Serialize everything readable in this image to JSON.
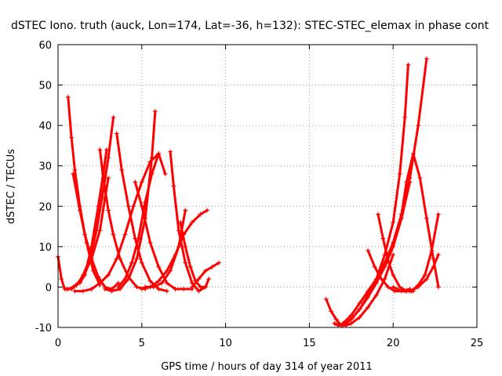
{
  "chart_data": {
    "type": "scatter",
    "title": "dSTEC Iono. truth (auck, Lon=174, Lat=-36, h=132): STEC-STEC_elemax in phase cont",
    "xlabel": "GPS time / hours of day 314 of year 2011",
    "ylabel": "dSTEC  / TECUs",
    "xlim": [
      0,
      25
    ],
    "ylim": [
      -10,
      60
    ],
    "xticks": [
      0,
      5,
      10,
      15,
      20,
      25
    ],
    "yticks": [
      -10,
      0,
      10,
      20,
      30,
      40,
      50,
      60
    ],
    "grid": true,
    "color": "#ff0000",
    "marker": "plus",
    "series": [
      {
        "x": [
          0.0,
          0.2,
          0.4,
          0.6,
          0.9,
          1.2,
          1.5,
          1.9,
          2.3,
          2.7,
          3.0,
          3.3
        ],
        "y": [
          7.5,
          2,
          -0.5,
          -0.5,
          0,
          1,
          3,
          7,
          14,
          24,
          32,
          42
        ]
      },
      {
        "x": [
          0.6,
          0.8,
          1.0,
          1.3,
          1.6,
          2.0,
          2.4,
          2.8,
          3.2,
          3.6
        ],
        "y": [
          47,
          37,
          29,
          20,
          13,
          7,
          2.5,
          0,
          -0.5,
          1
        ]
      },
      {
        "x": [
          0.5,
          0.8,
          1.1,
          1.5,
          2.0,
          2.5,
          2.8,
          3.0
        ],
        "y": [
          -0.5,
          -0.5,
          0.5,
          2.5,
          7,
          14,
          22,
          27
        ]
      },
      {
        "x": [
          0.9,
          1.3,
          1.7,
          2.1,
          2.5
        ],
        "y": [
          28,
          19,
          11,
          4,
          0.5
        ]
      },
      {
        "x": [
          1.3,
          1.6,
          2.0,
          2.4,
          2.7,
          2.9
        ],
        "y": [
          1,
          3,
          10,
          20,
          28,
          34
        ]
      },
      {
        "x": [
          2.5,
          2.7,
          3.0,
          3.3,
          3.7,
          4.2,
          4.7,
          5.2
        ],
        "y": [
          34,
          27,
          19,
          13,
          7,
          2.5,
          0,
          -0.5
        ]
      },
      {
        "x": [
          1.0,
          1.5,
          2.0,
          2.5,
          3.0,
          3.5,
          4.0,
          4.5,
          5.0,
          5.5,
          6.0,
          6.4
        ],
        "y": [
          -1,
          -1,
          -0.5,
          1,
          3,
          7,
          13,
          20,
          26,
          31,
          33,
          28
        ]
      },
      {
        "x": [
          3.5,
          3.8,
          4.2,
          4.6,
          5.0,
          5.5,
          6.0,
          6.5
        ],
        "y": [
          38,
          29,
          20,
          12,
          6,
          1.5,
          -0.5,
          -1
        ]
      },
      {
        "x": [
          2.8,
          3.2,
          3.7,
          4.2,
          4.7,
          5.2,
          5.6,
          5.8
        ],
        "y": [
          -0.5,
          -1,
          -0.5,
          2,
          7,
          17,
          32,
          43.5
        ]
      },
      {
        "x": [
          3.6,
          4.0,
          4.4,
          4.8,
          5.2,
          5.6,
          6.0
        ],
        "y": [
          0,
          2,
          6,
          12,
          21,
          28,
          33
        ]
      },
      {
        "x": [
          4.6,
          5.0,
          5.5,
          6.0,
          6.5,
          7.0,
          7.5,
          8.0
        ],
        "y": [
          26,
          20,
          11,
          5,
          1,
          -0.5,
          -0.5,
          -0.5
        ]
      },
      {
        "x": [
          5.2,
          5.7,
          6.2,
          6.7,
          7.2,
          7.6
        ],
        "y": [
          0,
          0,
          1,
          4,
          10,
          19
        ]
      },
      {
        "x": [
          5.0,
          5.5,
          6.0,
          6.5,
          7.0,
          7.5,
          8.0,
          8.5,
          8.9
        ],
        "y": [
          -0.5,
          0,
          1.5,
          4,
          8,
          13,
          16,
          18,
          19
        ]
      },
      {
        "x": [
          6.7,
          6.9,
          7.2,
          7.6,
          8.0,
          8.4,
          8.8,
          9.0
        ],
        "y": [
          33.5,
          25,
          14,
          6,
          1,
          -1,
          0,
          2
        ]
      },
      {
        "x": [
          7.3,
          7.6,
          7.9,
          8.2,
          8.5,
          8.8
        ],
        "y": [
          16,
          10,
          5,
          1.5,
          0,
          0
        ]
      },
      {
        "x": [
          8.0,
          8.4,
          8.8,
          9.2,
          9.6
        ],
        "y": [
          0,
          2,
          4,
          5,
          6
        ]
      },
      {
        "x": [
          16.0,
          16.3,
          16.6,
          16.9,
          17.2,
          17.5,
          18.0,
          18.5,
          19.0,
          19.5,
          20.0
        ],
        "y": [
          -3,
          -6,
          -8,
          -9.5,
          -9.5,
          -9,
          -7.5,
          -5,
          -2,
          2,
          8
        ]
      },
      {
        "x": [
          16.5,
          16.7,
          16.9,
          17.2,
          17.6,
          18.0,
          18.5,
          19.0,
          19.5,
          20.0,
          20.4,
          20.7,
          20.9
        ],
        "y": [
          -9,
          -9.5,
          -9.5,
          -9,
          -7.5,
          -5.5,
          -2,
          2,
          8,
          16,
          28,
          42,
          55
        ]
      },
      {
        "x": [
          16.5,
          17.0,
          17.5,
          18.0,
          18.5,
          19.0,
          19.5,
          20.0,
          20.5,
          21.0
        ],
        "y": [
          -9,
          -9.5,
          -8,
          -5.5,
          -2.5,
          1,
          5,
          10,
          17,
          26
        ]
      },
      {
        "x": [
          17.0,
          17.5,
          18.0,
          18.5,
          19.0,
          19.5,
          20.0,
          20.5,
          21.0,
          21.5,
          22.0
        ],
        "y": [
          -9,
          -7,
          -4,
          -1,
          2,
          6,
          11,
          18,
          27,
          40,
          56.5
        ]
      },
      {
        "x": [
          19.1,
          19.4,
          19.7,
          20.0,
          20.4,
          20.8,
          21.2
        ],
        "y": [
          18,
          12,
          6.5,
          3,
          0,
          -1,
          -1
        ]
      },
      {
        "x": [
          18.5,
          18.9,
          19.3,
          19.7,
          20.1,
          20.5,
          21.0
        ],
        "y": [
          9,
          5,
          2,
          0,
          -1,
          -1,
          -0.5
        ]
      },
      {
        "x": [
          20.5,
          20.8,
          21.2,
          21.6,
          22.0,
          22.4,
          22.7
        ],
        "y": [
          18,
          26,
          33,
          27,
          17,
          7,
          0
        ]
      },
      {
        "x": [
          20.0,
          20.5,
          21.0,
          21.5,
          22.0,
          22.4,
          22.7
        ],
        "y": [
          0,
          -1,
          -1,
          0,
          2,
          5,
          8
        ]
      },
      {
        "x": [
          20.7,
          21.1,
          21.5,
          21.9,
          22.3,
          22.7
        ],
        "y": [
          -1,
          -1,
          0.5,
          3,
          9,
          18
        ]
      }
    ]
  }
}
